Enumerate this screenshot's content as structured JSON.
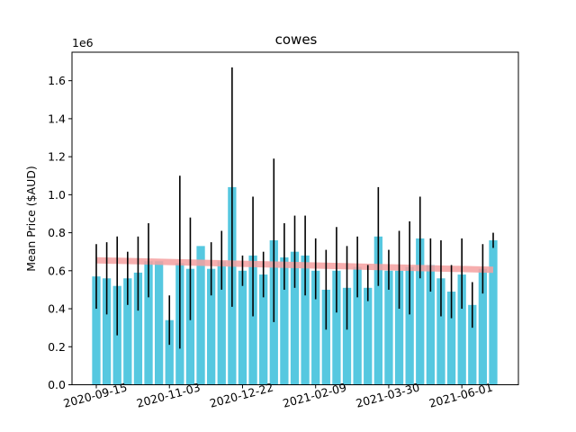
{
  "chart_data": {
    "type": "bar",
    "title": "cowes",
    "xlabel": "",
    "ylabel": "Mean Price ($AUD)",
    "y_multiplier_label": "1e6",
    "y_ticks": [
      0.0,
      0.2,
      0.4,
      0.6,
      0.8,
      1.0,
      1.2,
      1.4,
      1.6
    ],
    "y_tick_labels": [
      "0.0",
      "0.2",
      "0.4",
      "0.6",
      "0.8",
      "1.0",
      "1.2",
      "1.4",
      "1.6"
    ],
    "ylim": [
      0,
      1.75
    ],
    "x_ticks": [
      "2020-09-15",
      "2020-11-03",
      "2020-12-22",
      "2021-02-09",
      "2021-03-30",
      "2021-06-01"
    ],
    "bar_color": "#56c8e0",
    "errorbar_color": "#000000",
    "trend_color": "#f4a0a0",
    "series": [
      {
        "values": [
          0.57,
          0.56,
          0.52,
          0.56,
          0.59,
          0.65,
          0.65,
          0.34,
          0.64,
          0.61,
          0.73,
          0.61,
          0.65,
          1.04,
          0.6,
          0.68,
          0.58,
          0.76,
          0.67,
          0.7,
          0.68,
          0.6,
          0.5,
          0.6,
          0.51,
          0.62,
          0.51,
          0.78,
          0.6,
          0.6,
          0.62,
          0.77,
          0.63,
          0.56,
          0.49,
          0.58,
          0.42,
          0.61,
          0.76
        ],
        "error_low": [
          0.4,
          0.37,
          0.26,
          0.42,
          0.39,
          0.46,
          0.65,
          0.21,
          0.19,
          0.34,
          0.73,
          0.47,
          0.5,
          0.41,
          0.52,
          0.36,
          0.46,
          0.33,
          0.5,
          0.51,
          0.47,
          0.45,
          0.29,
          0.38,
          0.29,
          0.46,
          0.44,
          0.52,
          0.5,
          0.4,
          0.37,
          0.56,
          0.49,
          0.36,
          0.35,
          0.4,
          0.3,
          0.48,
          0.72
        ],
        "error_high": [
          0.74,
          0.75,
          0.78,
          0.7,
          0.78,
          0.85,
          0.65,
          0.47,
          1.1,
          0.88,
          0.73,
          0.75,
          0.81,
          1.67,
          0.68,
          0.99,
          0.7,
          1.19,
          0.85,
          0.89,
          0.89,
          0.77,
          0.71,
          0.83,
          0.73,
          0.78,
          0.63,
          1.04,
          0.71,
          0.81,
          0.86,
          0.99,
          0.77,
          0.76,
          0.63,
          0.77,
          0.54,
          0.74,
          0.8
        ]
      }
    ],
    "trend": {
      "start": 0.655,
      "end": 0.605
    }
  }
}
